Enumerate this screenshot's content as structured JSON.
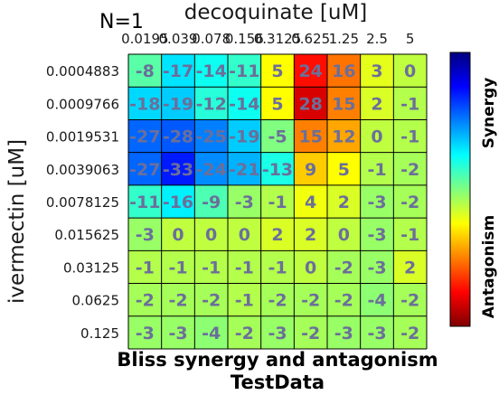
{
  "chart_data": {
    "type": "heatmap",
    "title": "Bliss synergy and antagonism",
    "subtitle": "TestData",
    "annotation": "N=1",
    "xlabel": "decoquinate [uM]",
    "ylabel": "ivermectin [uM]",
    "x_categories": [
      "0.0195",
      "0.039",
      "0.078",
      "0.156",
      "0.3125",
      "0.625",
      "1.25",
      "2.5",
      "5"
    ],
    "y_categories": [
      "0.0004883",
      "0.0009766",
      "0.0019531",
      "0.0039063",
      "0.0078125",
      "0.015625",
      "0.03125",
      "0.0625",
      "0.125"
    ],
    "values": [
      [
        -8,
        -17,
        -14,
        -11,
        5,
        24,
        16,
        3,
        0
      ],
      [
        -18,
        -19,
        -12,
        -14,
        5,
        28,
        15,
        2,
        -1
      ],
      [
        -27,
        -28,
        -25,
        -19,
        -5,
        15,
        12,
        0,
        -1
      ],
      [
        -27,
        -33,
        -24,
        -21,
        -13,
        9,
        5,
        -1,
        -2
      ],
      [
        -11,
        -16,
        -9,
        -3,
        -1,
        4,
        2,
        -3,
        -2
      ],
      [
        -3,
        0,
        0,
        0,
        2,
        2,
        0,
        -3,
        -1
      ],
      [
        -1,
        -1,
        -1,
        -1,
        -1,
        0,
        -2,
        -3,
        2
      ],
      [
        -2,
        -2,
        -2,
        -1,
        -2,
        -2,
        -2,
        -4,
        -2
      ],
      [
        -3,
        -3,
        -4,
        -2,
        -3,
        -2,
        -3,
        -3,
        -2
      ]
    ],
    "color_scale": "jet",
    "vmin": -45,
    "vmax": 35,
    "colorbar_labels": {
      "top": "Synergy",
      "bottom": "Antagonism"
    }
  }
}
